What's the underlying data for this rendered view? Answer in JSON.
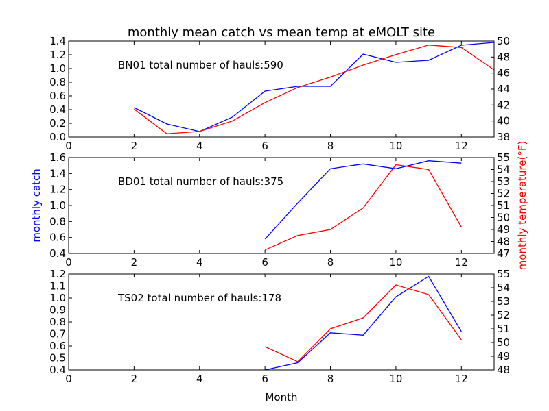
{
  "title": "monthly mean catch vs mean temp at eMOLT site",
  "xlabel": "Month",
  "left_ylabel": "monthly catch",
  "right_ylabel": "monthly temperature(°F)",
  "colors": {
    "catch": "#0000ff",
    "temp": "#ff0000",
    "axis": "#000000"
  },
  "chart_data": [
    {
      "type": "line",
      "annotation": "BN01 total number of hauls:590",
      "xlim": [
        0,
        13
      ],
      "x_ticks": [
        0,
        2,
        4,
        6,
        8,
        10,
        12
      ],
      "left_ylim": [
        0.0,
        1.4
      ],
      "left_ticks": [
        "0.0",
        "0.2",
        "0.4",
        "0.6",
        "0.8",
        "1.0",
        "1.2",
        "1.4"
      ],
      "right_ylim": [
        38,
        50
      ],
      "right_ticks": [
        "38",
        "40",
        "42",
        "44",
        "46",
        "48",
        "50"
      ],
      "series": [
        {
          "axis": "left",
          "color": "#0000ff",
          "x": [
            2,
            3,
            4,
            5,
            6,
            7,
            8,
            9,
            10,
            11,
            12,
            13
          ],
          "y": [
            0.43,
            0.19,
            0.08,
            0.29,
            0.67,
            0.74,
            0.74,
            1.21,
            1.09,
            1.12,
            1.34,
            1.38
          ]
        },
        {
          "axis": "right",
          "color": "#ff0000",
          "x": [
            2,
            3,
            4,
            5,
            6,
            7,
            8,
            9,
            10,
            11,
            12,
            13
          ],
          "y": [
            41.5,
            38.4,
            38.7,
            40.0,
            42.3,
            44.2,
            45.5,
            47.0,
            48.3,
            49.5,
            49.2,
            46.4
          ]
        }
      ]
    },
    {
      "type": "line",
      "annotation": "BD01 total number of hauls:375",
      "xlim": [
        0,
        13
      ],
      "x_ticks": [
        0,
        2,
        4,
        6,
        8,
        10,
        12
      ],
      "left_ylim": [
        0.4,
        1.6
      ],
      "left_ticks": [
        "0.4",
        "0.6",
        "0.8",
        "1.0",
        "1.2",
        "1.4",
        "1.6"
      ],
      "right_ylim": [
        47,
        55
      ],
      "right_ticks": [
        "47",
        "48",
        "49",
        "50",
        "51",
        "52",
        "53",
        "54",
        "55"
      ],
      "series": [
        {
          "axis": "left",
          "color": "#0000ff",
          "x": [
            6,
            7,
            8,
            9,
            10,
            11,
            12
          ],
          "y": [
            0.58,
            1.03,
            1.46,
            1.52,
            1.46,
            1.56,
            1.53
          ]
        },
        {
          "axis": "right",
          "color": "#ff0000",
          "x": [
            6,
            7,
            8,
            9,
            10,
            11,
            12
          ],
          "y": [
            47.3,
            48.5,
            49.0,
            50.8,
            54.4,
            54.0,
            49.2
          ]
        }
      ]
    },
    {
      "type": "line",
      "annotation": "TS02 total number of hauls:178",
      "xlim": [
        0,
        13
      ],
      "x_ticks": [
        0,
        2,
        4,
        6,
        8,
        10,
        12
      ],
      "left_ylim": [
        0.4,
        1.2
      ],
      "left_ticks": [
        "0.4",
        "0.5",
        "0.6",
        "0.7",
        "0.8",
        "0.9",
        "1.0",
        "1.1",
        "1.2"
      ],
      "right_ylim": [
        48,
        55
      ],
      "right_ticks": [
        "48",
        "49",
        "50",
        "51",
        "52",
        "53",
        "54",
        "55"
      ],
      "series": [
        {
          "axis": "left",
          "color": "#0000ff",
          "x": [
            6,
            7,
            8,
            9,
            10,
            11,
            12
          ],
          "y": [
            0.4,
            0.46,
            0.71,
            0.69,
            1.01,
            1.18,
            0.72
          ]
        },
        {
          "axis": "right",
          "color": "#ff0000",
          "x": [
            6,
            7,
            8,
            9,
            10,
            11,
            12
          ],
          "y": [
            49.7,
            48.6,
            51.0,
            51.8,
            54.2,
            53.5,
            50.2
          ]
        }
      ]
    }
  ]
}
